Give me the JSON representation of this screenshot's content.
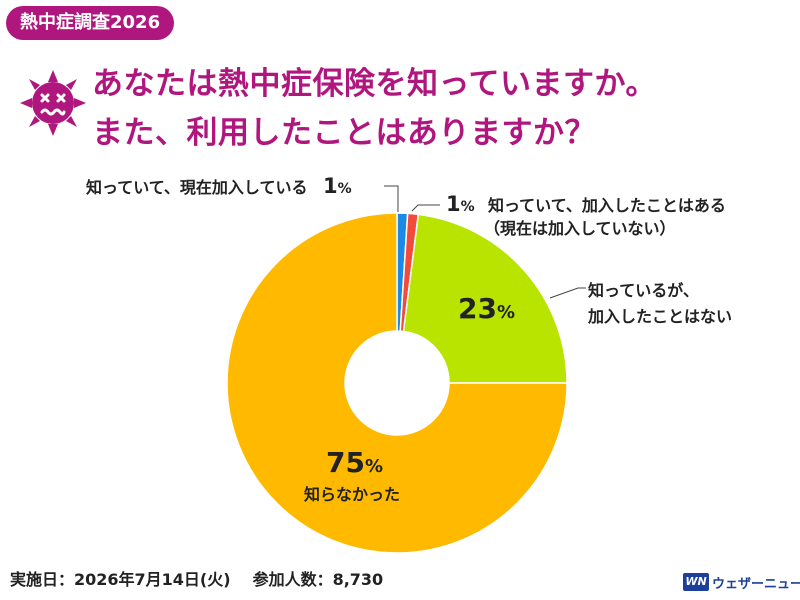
{
  "header": {
    "tag": "熱中症調査2026",
    "title_line1": "あなたは熱中症保険を知っていますか。",
    "title_line2": "また、利用したことはありますか？"
  },
  "chart_data": {
    "type": "pie",
    "donut": true,
    "slices": [
      {
        "label": "知っていて、現在加入している",
        "value": 1,
        "pct": "1",
        "color": "#1e88e5"
      },
      {
        "label": "知っていて、加入したことはある（現在は加入していない）",
        "value": 1,
        "pct": "1",
        "color": "#f44a3c"
      },
      {
        "label": "知っているが、加入したことはない",
        "value": 23,
        "pct": "23",
        "color": "#b8e400"
      },
      {
        "label": "知らなかった",
        "value": 75,
        "pct": "75",
        "color": "#ffba00"
      }
    ],
    "labels": {
      "s0": "知っていて、現在加入している",
      "s1_line1": "知っていて、加入したことはある",
      "s1_line2": "（現在は加入していない）",
      "s2_line1": "知っているが、",
      "s2_line2": "加入したことはない",
      "s3": "知らなかった",
      "pct_sign": "%"
    }
  },
  "footer": {
    "date": "実施日：2026年7月14日(火)",
    "participants": "参加人数：8,730"
  },
  "brand": {
    "mark": "WN",
    "name": "ウェザーニュース"
  },
  "colors": {
    "accent": "#b0177e",
    "brand": "#1d3f99"
  },
  "icons": {
    "mascot": "dizzy-sun-icon"
  }
}
